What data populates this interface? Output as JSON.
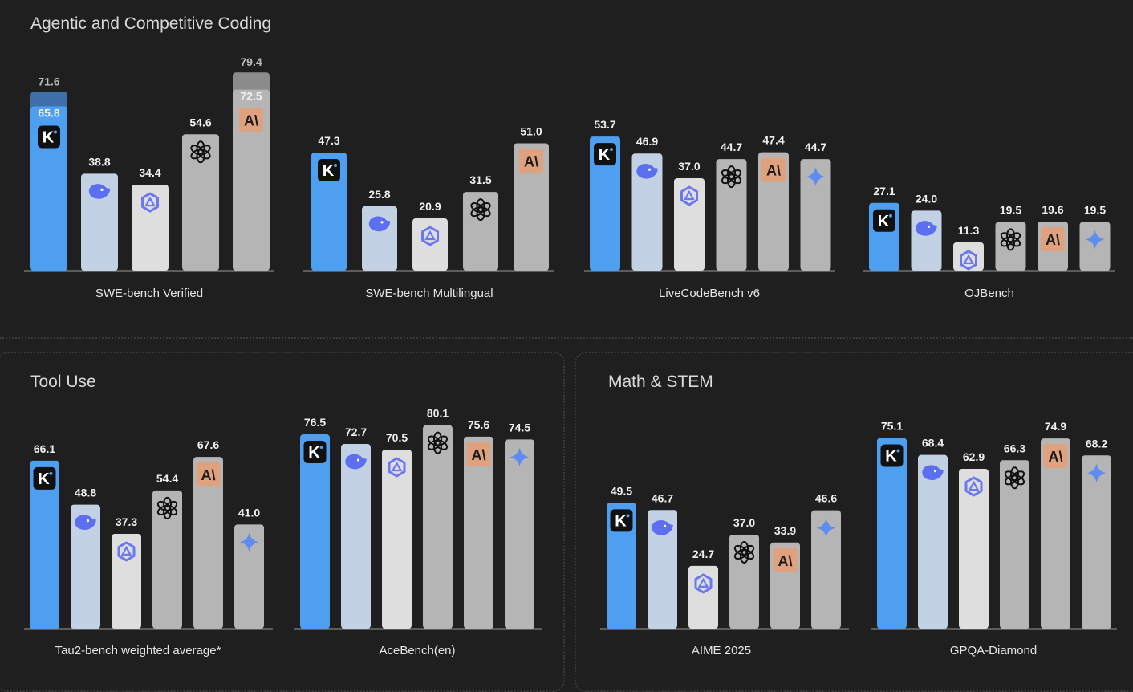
{
  "sections": {
    "coding_title": "Agentic and Competitive Coding",
    "tool_title": "Tool Use",
    "math_title": "Math & STEM"
  },
  "colors": {
    "kimi": "#4f9ff0",
    "deepseek": "#c3d1e4",
    "qwen": "#dedede",
    "openai": "#b5b5b5",
    "anthropic": "#b5b5b5",
    "gemini": "#b5b5b5",
    "overlay": "#8b8b8b",
    "baseline": "#9a9a9a"
  },
  "chart_data": [
    {
      "type": "bar",
      "title": "SWE-bench Verified",
      "models": [
        "kimi",
        "deepseek",
        "qwen",
        "openai",
        "anthropic"
      ],
      "values": [
        65.8,
        38.8,
        34.4,
        54.6,
        72.5
      ],
      "extra_values": [
        71.6,
        null,
        null,
        null,
        79.4
      ]
    },
    {
      "type": "bar",
      "title": "SWE-bench Multilingual",
      "models": [
        "kimi",
        "deepseek",
        "qwen",
        "openai",
        "anthropic"
      ],
      "values": [
        47.3,
        25.8,
        20.9,
        31.5,
        51.0
      ]
    },
    {
      "type": "bar",
      "title": "LiveCodeBench v6",
      "models": [
        "kimi",
        "deepseek",
        "qwen",
        "openai",
        "anthropic",
        "gemini"
      ],
      "values": [
        53.7,
        46.9,
        37.0,
        44.7,
        47.4,
        44.7
      ]
    },
    {
      "type": "bar",
      "title": "OJBench",
      "models": [
        "kimi",
        "deepseek",
        "qwen",
        "openai",
        "anthropic",
        "gemini"
      ],
      "values": [
        27.1,
        24.0,
        11.3,
        19.5,
        19.6,
        19.5
      ]
    },
    {
      "type": "bar",
      "title": "Tau2-bench weighted average*",
      "models": [
        "kimi",
        "deepseek",
        "qwen",
        "openai",
        "anthropic",
        "gemini"
      ],
      "values": [
        66.1,
        48.8,
        37.3,
        54.4,
        67.6,
        41.0
      ]
    },
    {
      "type": "bar",
      "title": "AceBench(en)",
      "models": [
        "kimi",
        "deepseek",
        "qwen",
        "openai",
        "anthropic",
        "gemini"
      ],
      "values": [
        76.5,
        72.7,
        70.5,
        80.1,
        75.6,
        74.5
      ]
    },
    {
      "type": "bar",
      "title": "AIME 2025",
      "models": [
        "kimi",
        "deepseek",
        "qwen",
        "openai",
        "anthropic",
        "gemini"
      ],
      "values": [
        49.5,
        46.7,
        24.7,
        37.0,
        33.9,
        46.6
      ]
    },
    {
      "type": "bar",
      "title": "GPQA-Diamond",
      "models": [
        "kimi",
        "deepseek",
        "qwen",
        "openai",
        "anthropic",
        "gemini"
      ],
      "values": [
        75.1,
        68.4,
        62.9,
        66.3,
        74.9,
        68.2
      ]
    }
  ]
}
